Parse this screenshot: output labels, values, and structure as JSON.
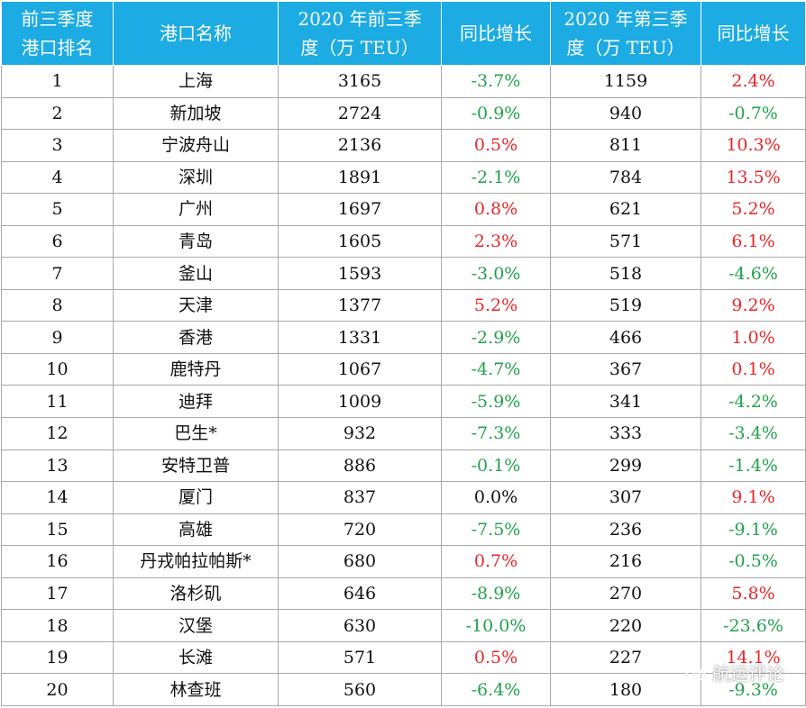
{
  "headers": {
    "rank": "前三季度\n港口排名",
    "port": "港口名称",
    "ytd": "2020 年前三季\n度（万 TEU）",
    "ytd_yoy": "同比增长",
    "q3": "2020 年第三季\n度（万 TEU）",
    "q3_yoy": "同比增长"
  },
  "colors": {
    "header_bg": "#1cabe2",
    "positive": "#e8272a",
    "negative": "#23a24d"
  },
  "rows": [
    {
      "rank": "1",
      "port": "上海",
      "ytd": "3165",
      "ytd_yoy": "-3.7%",
      "q3": "1159",
      "q3_yoy": "2.4%"
    },
    {
      "rank": "2",
      "port": "新加坡",
      "ytd": "2724",
      "ytd_yoy": "-0.9%",
      "q3": "940",
      "q3_yoy": "-0.7%"
    },
    {
      "rank": "3",
      "port": "宁波舟山",
      "ytd": "2136",
      "ytd_yoy": "0.5%",
      "q3": "811",
      "q3_yoy": "10.3%"
    },
    {
      "rank": "4",
      "port": "深圳",
      "ytd": "1891",
      "ytd_yoy": "-2.1%",
      "q3": "784",
      "q3_yoy": "13.5%"
    },
    {
      "rank": "5",
      "port": "广州",
      "ytd": "1697",
      "ytd_yoy": "0.8%",
      "q3": "621",
      "q3_yoy": "5.2%"
    },
    {
      "rank": "6",
      "port": "青岛",
      "ytd": "1605",
      "ytd_yoy": "2.3%",
      "q3": "571",
      "q3_yoy": "6.1%"
    },
    {
      "rank": "7",
      "port": "釜山",
      "ytd": "1593",
      "ytd_yoy": "-3.0%",
      "q3": "518",
      "q3_yoy": "-4.6%"
    },
    {
      "rank": "8",
      "port": "天津",
      "ytd": "1377",
      "ytd_yoy": "5.2%",
      "q3": "519",
      "q3_yoy": "9.2%"
    },
    {
      "rank": "9",
      "port": "香港",
      "ytd": "1331",
      "ytd_yoy": "-2.9%",
      "q3": "466",
      "q3_yoy": "1.0%"
    },
    {
      "rank": "10",
      "port": "鹿特丹",
      "ytd": "1067",
      "ytd_yoy": "-4.7%",
      "q3": "367",
      "q3_yoy": "0.1%"
    },
    {
      "rank": "11",
      "port": "迪拜",
      "ytd": "1009",
      "ytd_yoy": "-5.9%",
      "q3": "341",
      "q3_yoy": "-4.2%"
    },
    {
      "rank": "12",
      "port": "巴生*",
      "ytd": "932",
      "ytd_yoy": "-7.3%",
      "q3": "333",
      "q3_yoy": "-3.4%"
    },
    {
      "rank": "13",
      "port": "安特卫普",
      "ytd": "886",
      "ytd_yoy": "-0.1%",
      "q3": "299",
      "q3_yoy": "-1.4%"
    },
    {
      "rank": "14",
      "port": "厦门",
      "ytd": "837",
      "ytd_yoy": "0.0%",
      "q3": "307",
      "q3_yoy": "9.1%"
    },
    {
      "rank": "15",
      "port": "高雄",
      "ytd": "720",
      "ytd_yoy": "-7.5%",
      "q3": "236",
      "q3_yoy": "-9.1%"
    },
    {
      "rank": "16",
      "port": "丹戎帕拉帕斯*",
      "ytd": "680",
      "ytd_yoy": "0.7%",
      "q3": "216",
      "q3_yoy": "-0.5%"
    },
    {
      "rank": "17",
      "port": "洛杉矶",
      "ytd": "646",
      "ytd_yoy": "-8.9%",
      "q3": "270",
      "q3_yoy": "5.8%"
    },
    {
      "rank": "18",
      "port": "汉堡",
      "ytd": "630",
      "ytd_yoy": "-10.0%",
      "q3": "220",
      "q3_yoy": "-23.6%"
    },
    {
      "rank": "19",
      "port": "长滩",
      "ytd": "571",
      "ytd_yoy": "0.5%",
      "q3": "227",
      "q3_yoy": "14.1%"
    },
    {
      "rank": "20",
      "port": "林查班",
      "ytd": "560",
      "ytd_yoy": "-6.4%",
      "q3": "180",
      "q3_yoy": "-9.3%"
    }
  ],
  "watermark": {
    "text": "航运评论",
    "icon": "wechat-icon"
  }
}
